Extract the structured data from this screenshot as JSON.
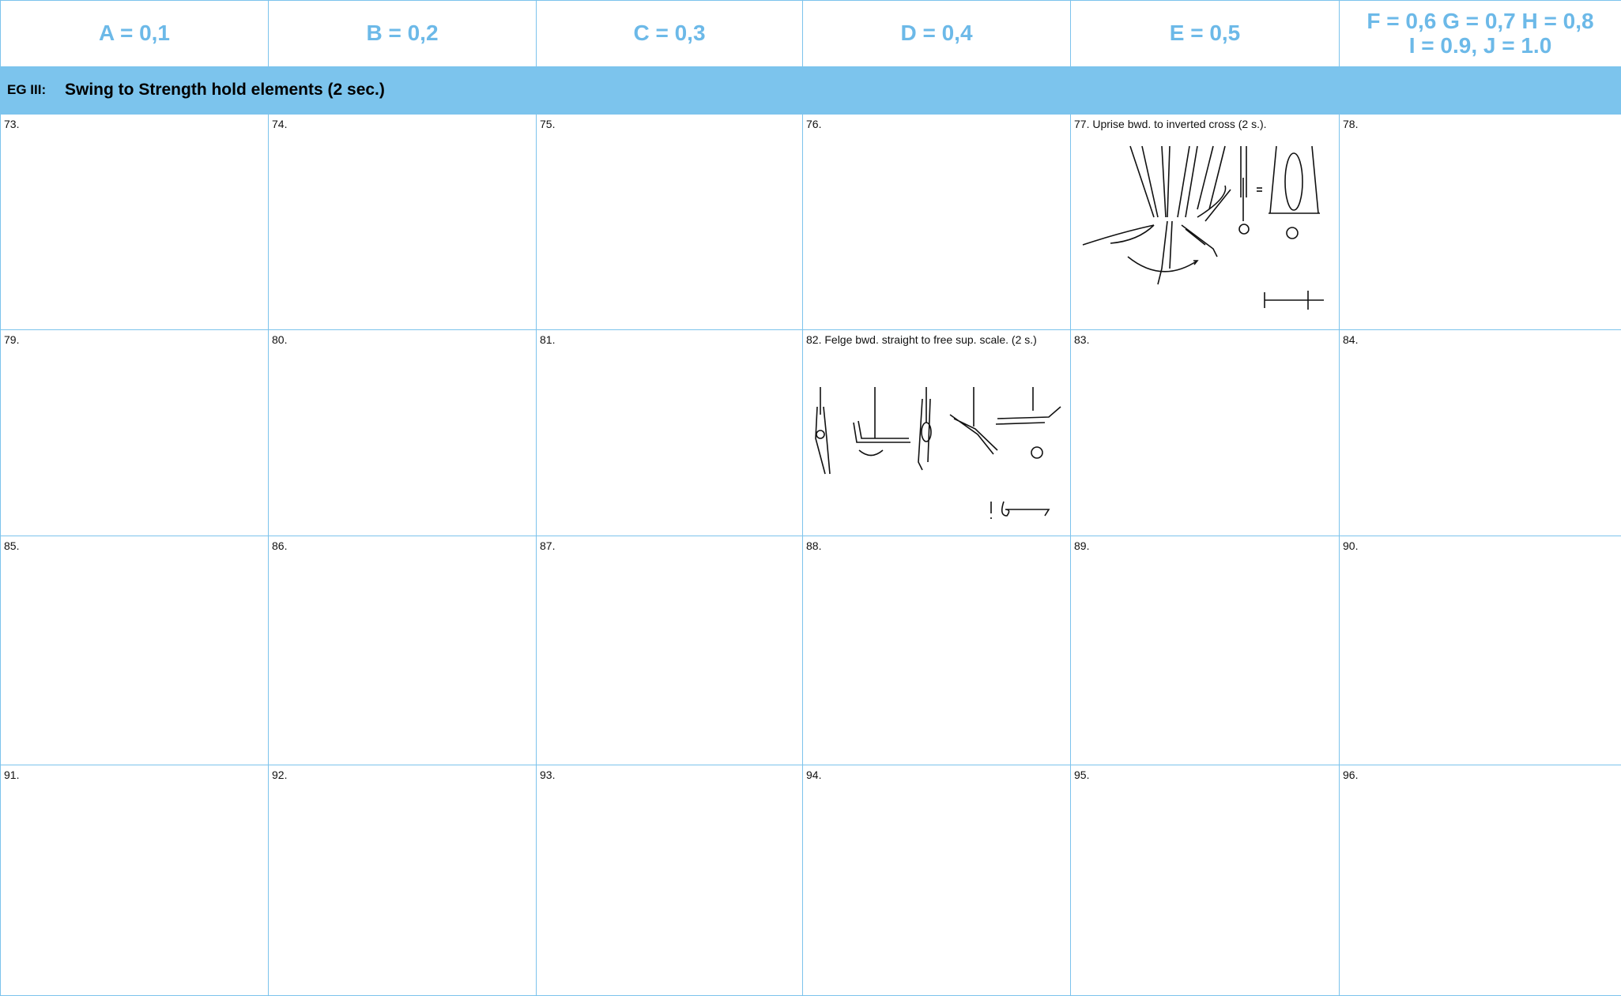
{
  "headers": [
    [
      "A = 0,1"
    ],
    [
      "B = 0,2"
    ],
    [
      "C = 0,3"
    ],
    [
      "D = 0,4"
    ],
    [
      "E = 0,5"
    ],
    [
      "F = 0,6 G = 0,7 H = 0,8",
      "I = 0.9,  J = 1.0"
    ]
  ],
  "section": {
    "code": "EG III:",
    "title": "Swing to Strength hold elements (2 sec.)"
  },
  "rows": [
    [
      "73.",
      "74.",
      "75.",
      "76.",
      "77. Uprise bwd. to inverted cross (2 s.).",
      "78."
    ],
    [
      "79.",
      "80.",
      "81.",
      "82. Felge bwd. straight to free sup. scale. (2 s.)",
      "83.",
      "84."
    ],
    [
      "85.",
      "86.",
      "87.",
      "88.",
      "89.",
      "90."
    ],
    [
      "91.",
      "92.",
      "93.",
      "94.",
      "95.",
      "96."
    ]
  ]
}
